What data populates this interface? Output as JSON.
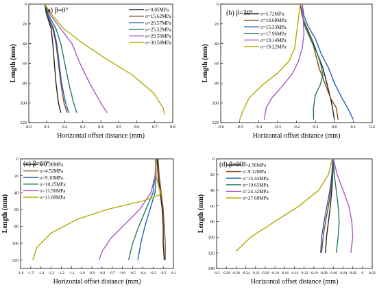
{
  "chart_data": [
    {
      "type": "line",
      "title": "(a) β=0°",
      "xlabel": "Horizontal offset distance (mm)",
      "ylabel": "Length (mm)",
      "xlim": [
        -0.1,
        0.8
      ],
      "ylim": [
        0,
        120
      ],
      "y_inverted": true,
      "xticks": [
        "0.0",
        "0.1",
        "0.2",
        "0.3",
        "0.4",
        "0.5",
        "0.6",
        "0.7",
        "0.8"
      ],
      "yticks": [
        "0",
        "20",
        "40",
        "60",
        "80",
        "100",
        "120"
      ],
      "legend": "top-right",
      "grid": false,
      "series": [
        {
          "name": "σ=9.05MPa",
          "color": "#222222",
          "points": [
            [
              0,
              0
            ],
            [
              0.01,
              10
            ],
            [
              0.04,
              25
            ],
            [
              0.05,
              40
            ],
            [
              0.06,
              60
            ],
            [
              0.07,
              80
            ],
            [
              0.085,
              100
            ],
            [
              0.1,
              110
            ]
          ]
        },
        {
          "name": "σ=15.62MPa",
          "color": "#8b4513",
          "points": [
            [
              0,
              0
            ],
            [
              0.012,
              10
            ],
            [
              0.05,
              25
            ],
            [
              0.07,
              40
            ],
            [
              0.085,
              60
            ],
            [
              0.1,
              80
            ],
            [
              0.12,
              100
            ],
            [
              0.14,
              110
            ]
          ]
        },
        {
          "name": "σ=20.57MPa",
          "color": "#1f5fbf",
          "points": [
            [
              0,
              0
            ],
            [
              0.015,
              10
            ],
            [
              0.055,
              25
            ],
            [
              0.075,
              40
            ],
            [
              0.09,
              60
            ],
            [
              0.105,
              80
            ],
            [
              0.13,
              100
            ],
            [
              0.15,
              110
            ]
          ]
        },
        {
          "name": "σ=25.32MPa",
          "color": "#1b7a5a",
          "points": [
            [
              0,
              0
            ],
            [
              0.02,
              10
            ],
            [
              0.07,
              25
            ],
            [
              0.1,
              40
            ],
            [
              0.125,
              60
            ],
            [
              0.15,
              80
            ],
            [
              0.18,
              100
            ],
            [
              0.2,
              110
            ]
          ]
        },
        {
          "name": "σ=29.56MPa",
          "color": "#a855c8",
          "points": [
            [
              0,
              0
            ],
            [
              0.03,
              10
            ],
            [
              0.1,
              25
            ],
            [
              0.17,
              40
            ],
            [
              0.22,
              60
            ],
            [
              0.28,
              80
            ],
            [
              0.35,
              100
            ],
            [
              0.39,
              110
            ]
          ]
        },
        {
          "name": "σ=30.58MPa",
          "color": "#b5a800",
          "points": [
            [
              0,
              0
            ],
            [
              0.04,
              10
            ],
            [
              0.12,
              25
            ],
            [
              0.24,
              40
            ],
            [
              0.38,
              55
            ],
            [
              0.55,
              72
            ],
            [
              0.68,
              90
            ],
            [
              0.74,
              105
            ],
            [
              0.75,
              112
            ]
          ]
        }
      ]
    },
    {
      "type": "line",
      "title": "(b) β=30°",
      "xlabel": "Horizontal offset distance (mm)",
      "ylabel": "Length (mm)",
      "xlim": [
        -0.6,
        0.2
      ],
      "ylim": [
        0,
        120
      ],
      "y_inverted": true,
      "xticks": [
        "-0.6",
        "-0.5",
        "-0.4",
        "-0.3",
        "-0.2",
        "-0.1",
        "0.0",
        "0.1",
        "0.2"
      ],
      "yticks": [
        "0",
        "20",
        "40",
        "60",
        "80",
        "100",
        "120"
      ],
      "legend": "top-right",
      "grid": false,
      "series": [
        {
          "name": "σ=5.72MPa",
          "color": "#222222",
          "points": [
            [
              -0.18,
              0
            ],
            [
              -0.17,
              10
            ],
            [
              -0.16,
              20
            ],
            [
              -0.12,
              35
            ],
            [
              -0.09,
              50
            ],
            [
              -0.06,
              65
            ],
            [
              -0.04,
              80
            ],
            [
              -0.02,
              95
            ],
            [
              -0.01,
              105
            ],
            [
              0,
              117
            ]
          ]
        },
        {
          "name": "σ=10.68MPa",
          "color": "#8b4513",
          "points": [
            [
              -0.18,
              0
            ],
            [
              -0.17,
              12
            ],
            [
              -0.15,
              22
            ],
            [
              -0.12,
              35
            ],
            [
              -0.1,
              50
            ],
            [
              -0.08,
              65
            ],
            [
              -0.05,
              80
            ],
            [
              -0.02,
              95
            ],
            [
              0.01,
              105
            ],
            [
              0.02,
              117
            ]
          ]
        },
        {
          "name": "σ=15.33MPa",
          "color": "#1f5fbf",
          "points": [
            [
              -0.17,
              0
            ],
            [
              -0.16,
              12
            ],
            [
              -0.14,
              22
            ],
            [
              -0.1,
              35
            ],
            [
              -0.07,
              50
            ],
            [
              -0.03,
              65
            ],
            [
              0,
              80
            ],
            [
              0.04,
              95
            ],
            [
              0.07,
              105
            ],
            [
              0.1,
              117
            ]
          ]
        },
        {
          "name": "σ=17.96MPa",
          "color": "#1b7a5a",
          "points": [
            [
              -0.17,
              0
            ],
            [
              -0.165,
              15
            ],
            [
              -0.15,
              25
            ],
            [
              -0.12,
              38
            ],
            [
              -0.09,
              50
            ],
            [
              -0.07,
              62
            ],
            [
              -0.06,
              72
            ],
            [
              -0.075,
              82
            ],
            [
              -0.1,
              92
            ],
            [
              -0.11,
              105
            ],
            [
              -0.11,
              117
            ]
          ]
        },
        {
          "name": "σ=19.14MPa",
          "color": "#a855c8",
          "points": [
            [
              -0.17,
              0
            ],
            [
              -0.165,
              15
            ],
            [
              -0.16,
              30
            ],
            [
              -0.17,
              45
            ],
            [
              -0.19,
              58
            ],
            [
              -0.22,
              70
            ],
            [
              -0.27,
              82
            ],
            [
              -0.33,
              95
            ],
            [
              -0.36,
              105
            ],
            [
              -0.37,
              117
            ]
          ]
        },
        {
          "name": "σ=19.22MPa",
          "color": "#b5a800",
          "points": [
            [
              -0.18,
              0
            ],
            [
              -0.19,
              15
            ],
            [
              -0.2,
              30
            ],
            [
              -0.21,
              45
            ],
            [
              -0.24,
              58
            ],
            [
              -0.3,
              70
            ],
            [
              -0.38,
              82
            ],
            [
              -0.45,
              95
            ],
            [
              -0.48,
              107
            ],
            [
              -0.5,
              117
            ]
          ]
        }
      ]
    },
    {
      "type": "line",
      "title": "(c) β=60°",
      "xlabel": "Horizontal offset distance (mm)",
      "ylabel": "Length (mm)",
      "xlim": [
        -1.6,
        -0.1
      ],
      "ylim": [
        0,
        130
      ],
      "y_inverted": true,
      "xticks": [
        "-1.6",
        "-1.5",
        "-1.4",
        "-1.3",
        "-1.2",
        "-1.1",
        "-1.0",
        "-0.9",
        "-0.8",
        "-0.7",
        "-0.6",
        "-0.5",
        "-0.4",
        "-0.3",
        "-0.2",
        "-0.1"
      ],
      "yticks": [
        "0",
        "20",
        "40",
        "60",
        "80",
        "100",
        "120"
      ],
      "legend": "top-left",
      "grid": false,
      "series": [
        {
          "name": "σ=2.98MPa",
          "color": "#222222",
          "points": [
            [
              -0.26,
              0
            ],
            [
              -0.25,
              20
            ],
            [
              -0.23,
              40
            ],
            [
              -0.21,
              60
            ],
            [
              -0.2,
              80
            ],
            [
              -0.2,
              100
            ],
            [
              -0.19,
              120
            ]
          ]
        },
        {
          "name": "σ=4.52MPa",
          "color": "#8b4513",
          "points": [
            [
              -0.25,
              0
            ],
            [
              -0.24,
              20
            ],
            [
              -0.22,
              40
            ],
            [
              -0.2,
              60
            ],
            [
              -0.19,
              80
            ],
            [
              -0.18,
              100
            ],
            [
              -0.18,
              120
            ]
          ]
        },
        {
          "name": "σ=9.10MPa",
          "color": "#1f5fbf",
          "points": [
            [
              -0.27,
              0
            ],
            [
              -0.27,
              20
            ],
            [
              -0.28,
              40
            ],
            [
              -0.33,
              60
            ],
            [
              -0.38,
              80
            ],
            [
              -0.42,
              100
            ],
            [
              -0.45,
              120
            ]
          ]
        },
        {
          "name": "σ=10.25MPa",
          "color": "#1b7a5a",
          "points": [
            [
              -0.27,
              0
            ],
            [
              -0.28,
              20
            ],
            [
              -0.3,
              40
            ],
            [
              -0.37,
              60
            ],
            [
              -0.44,
              80
            ],
            [
              -0.5,
              100
            ],
            [
              -0.54,
              120
            ]
          ]
        },
        {
          "name": "σ=11.56MPa",
          "color": "#a855c8",
          "points": [
            [
              -0.27,
              0
            ],
            [
              -0.28,
              20
            ],
            [
              -0.32,
              40
            ],
            [
              -0.43,
              60
            ],
            [
              -0.58,
              78
            ],
            [
              -0.72,
              95
            ],
            [
              -0.8,
              110
            ],
            [
              -0.83,
              120
            ]
          ]
        },
        {
          "name": "σ=11.68MPa",
          "color": "#b5a800",
          "points": [
            [
              -0.28,
              0
            ],
            [
              -0.27,
              20
            ],
            [
              -0.24,
              35
            ],
            [
              -0.22,
              42
            ],
            [
              -0.4,
              50
            ],
            [
              -0.75,
              60
            ],
            [
              -1.05,
              72
            ],
            [
              -1.3,
              88
            ],
            [
              -1.44,
              105
            ],
            [
              -1.48,
              120
            ]
          ]
        }
      ]
    },
    {
      "type": "line",
      "title": "(d) β=90°",
      "xlabel": "Horizontal offset distance (mm)",
      "ylabel": "Length (mm)",
      "xlim": [
        -0.3,
        0.02
      ],
      "ylim": [
        0,
        140
      ],
      "y_inverted": true,
      "xticks": [
        "-0.3",
        "-0.28",
        "-0.26",
        "-0.24",
        "-0.22",
        "-0.20",
        "-0.18",
        "-0.16",
        "-0.14",
        "-0.12",
        "-0.10",
        "-0.08",
        "-0.06",
        "-0.04",
        "-0.02",
        "0",
        "0.02"
      ],
      "yticks": [
        "0",
        "20",
        "40",
        "60",
        "80",
        "100",
        "120",
        "140"
      ],
      "legend": "top-left",
      "grid": false,
      "series": [
        {
          "name": "σ=4.56MPa",
          "color": "#222222",
          "points": [
            [
              -0.06,
              0
            ],
            [
              -0.061,
              20
            ],
            [
              -0.063,
              40
            ],
            [
              -0.066,
              60
            ],
            [
              -0.07,
              80
            ],
            [
              -0.074,
              100
            ],
            [
              -0.076,
              120
            ]
          ]
        },
        {
          "name": "σ=9.12MPa",
          "color": "#8b4513",
          "points": [
            [
              -0.06,
              0
            ],
            [
              -0.062,
              20
            ],
            [
              -0.065,
              40
            ],
            [
              -0.07,
              60
            ],
            [
              -0.076,
              80
            ],
            [
              -0.081,
              100
            ],
            [
              -0.084,
              120
            ]
          ]
        },
        {
          "name": "σ=15.43MPa",
          "color": "#1f5fbf",
          "points": [
            [
              -0.061,
              0
            ],
            [
              -0.063,
              20
            ],
            [
              -0.067,
              40
            ],
            [
              -0.073,
              60
            ],
            [
              -0.079,
              80
            ],
            [
              -0.084,
              100
            ],
            [
              -0.086,
              120
            ]
          ]
        },
        {
          "name": "σ=19.65MPa",
          "color": "#1b7a5a",
          "points": [
            [
              -0.06,
              0
            ],
            [
              -0.058,
              20
            ],
            [
              -0.054,
              40
            ],
            [
              -0.05,
              60
            ],
            [
              -0.048,
              80
            ],
            [
              -0.05,
              100
            ],
            [
              -0.054,
              120
            ]
          ]
        },
        {
          "name": "σ=24.32MPa",
          "color": "#a855c8",
          "points": [
            [
              -0.06,
              0
            ],
            [
              -0.052,
              20
            ],
            [
              -0.04,
              40
            ],
            [
              -0.028,
              60
            ],
            [
              -0.022,
              80
            ],
            [
              -0.02,
              100
            ],
            [
              -0.024,
              120
            ]
          ]
        },
        {
          "name": "σ=27.68MPa",
          "color": "#b5a800",
          "points": [
            [
              -0.062,
              0
            ],
            [
              -0.07,
              20
            ],
            [
              -0.09,
              40
            ],
            [
              -0.13,
              60
            ],
            [
              -0.18,
              80
            ],
            [
              -0.23,
              100
            ],
            [
              -0.26,
              118
            ]
          ]
        }
      ]
    }
  ]
}
